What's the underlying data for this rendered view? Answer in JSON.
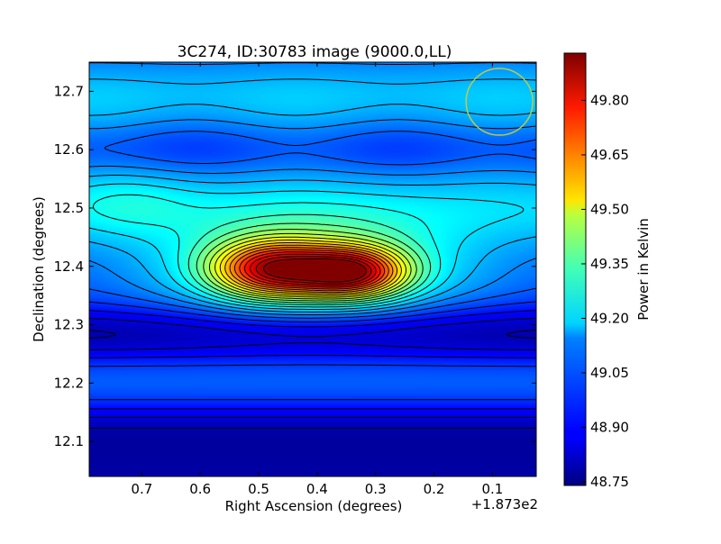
{
  "chart_data": {
    "type": "heatmap",
    "title": "3C274, ID:30783 image (9000.0,LL)",
    "xlabel": "Right Ascension (degrees)",
    "ylabel": "Declination (degrees)",
    "x_offset_label": "+1.873e2",
    "x_ticks": [
      {
        "value": 0.7,
        "label": "0.7"
      },
      {
        "value": 0.6,
        "label": "0.6"
      },
      {
        "value": 0.5,
        "label": "0.5"
      },
      {
        "value": 0.4,
        "label": "0.4"
      },
      {
        "value": 0.3,
        "label": "0.3"
      },
      {
        "value": 0.2,
        "label": "0.2"
      },
      {
        "value": 0.1,
        "label": "0.1"
      }
    ],
    "y_ticks": [
      {
        "value": 12.1,
        "label": "12.1"
      },
      {
        "value": 12.2,
        "label": "12.2"
      },
      {
        "value": 12.3,
        "label": "12.3"
      },
      {
        "value": 12.4,
        "label": "12.4"
      },
      {
        "value": 12.5,
        "label": "12.5"
      },
      {
        "value": 12.6,
        "label": "12.6"
      },
      {
        "value": 12.7,
        "label": "12.7"
      }
    ],
    "xlim": [
      0.79,
      0.025
    ],
    "ylim": [
      12.04,
      12.75
    ],
    "colorbar": {
      "label": "Power in Kelvin",
      "range": [
        48.74,
        49.93
      ],
      "ticks": [
        "48.75",
        "48.90",
        "49.05",
        "49.20",
        "49.35",
        "49.50",
        "49.65",
        "49.80"
      ],
      "tick_values": [
        48.75,
        48.9,
        49.05,
        49.2,
        49.35,
        49.5,
        49.65,
        49.8
      ]
    },
    "colormap": "jet",
    "peaks": [
      {
        "ra": 0.48,
        "dec": 12.395,
        "power": 49.85
      },
      {
        "ra": 0.34,
        "dec": 12.39,
        "power": 49.9
      }
    ],
    "beam_circle": {
      "ra": 0.088,
      "dec": 12.682,
      "color": "#c8c840"
    },
    "grid": false
  }
}
